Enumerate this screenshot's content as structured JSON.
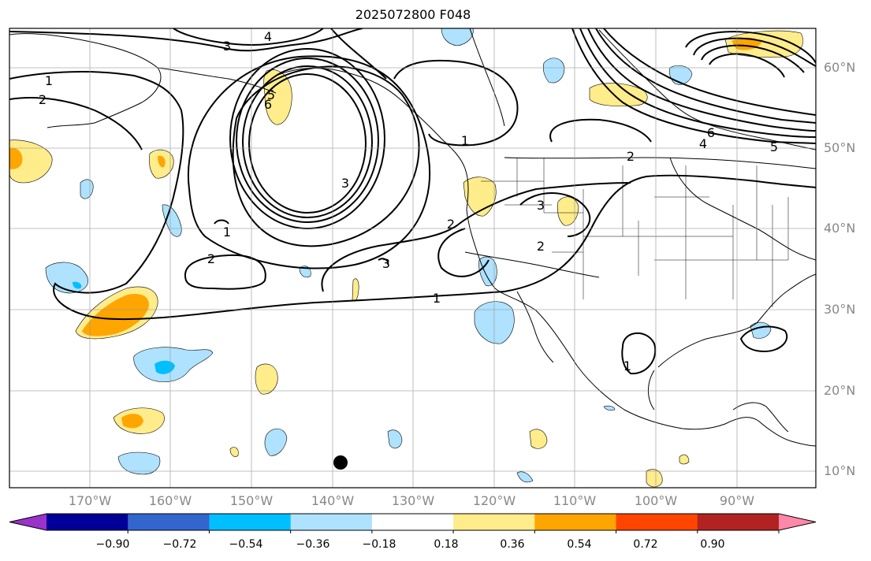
{
  "title": "2025072800 F048",
  "longitude_labels": [
    "170°W",
    "160°W",
    "150°W",
    "140°W",
    "130°W",
    "120°W",
    "110°W",
    "100°W",
    "90°W"
  ],
  "latitude_labels": [
    "60°N",
    "50°N",
    "40°N",
    "30°N",
    "20°N",
    "10°N"
  ],
  "colorbar": {
    "colors": [
      "#9933cc",
      "#000099",
      "#3366cc",
      "#00bfff",
      "#aee2ff",
      "#ffffff",
      "#ffec8b",
      "#ffa500",
      "#ff4500",
      "#b22222",
      "#ff88aa"
    ],
    "tick_labels": [
      "−0.90",
      "−0.72",
      "−0.54",
      "−0.36",
      "−0.18",
      "0.18",
      "0.36",
      "0.54",
      "0.72",
      "0.90"
    ]
  },
  "contour_labels": [
    "1",
    "2",
    "3",
    "4",
    "5",
    "6",
    "1",
    "2",
    "3",
    "2",
    "1",
    "2",
    "3",
    "4",
    "5",
    "6",
    "2",
    "1",
    "3",
    "1"
  ],
  "marker": {
    "label": "",
    "color": "#000000"
  }
}
